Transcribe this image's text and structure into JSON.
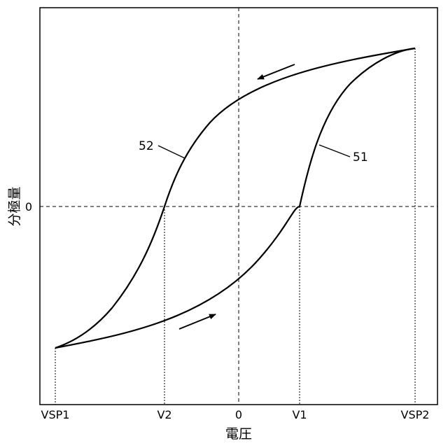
{
  "chart_data": {
    "type": "line",
    "x_axis": {
      "title": "電圧",
      "ticks": [
        "VSP1",
        "V2",
        "0",
        "V1",
        "VSP2"
      ]
    },
    "y_axis": {
      "title": "分極量",
      "ticks": [
        "0"
      ]
    },
    "curves": [
      {
        "label": "51",
        "branch": "increasing-voltage",
        "from": "VSP1",
        "through": "V1",
        "to": "VSP2"
      },
      {
        "label": "52",
        "branch": "decreasing-voltage",
        "from": "VSP2",
        "through": "V2",
        "to": "VSP1"
      }
    ],
    "arrows": [
      {
        "name": "arrow-increasing",
        "direction": "up-right"
      },
      {
        "name": "arrow-decreasing",
        "direction": "down-left"
      }
    ],
    "colors": {
      "stroke": "#000000",
      "background": "#ffffff"
    }
  }
}
